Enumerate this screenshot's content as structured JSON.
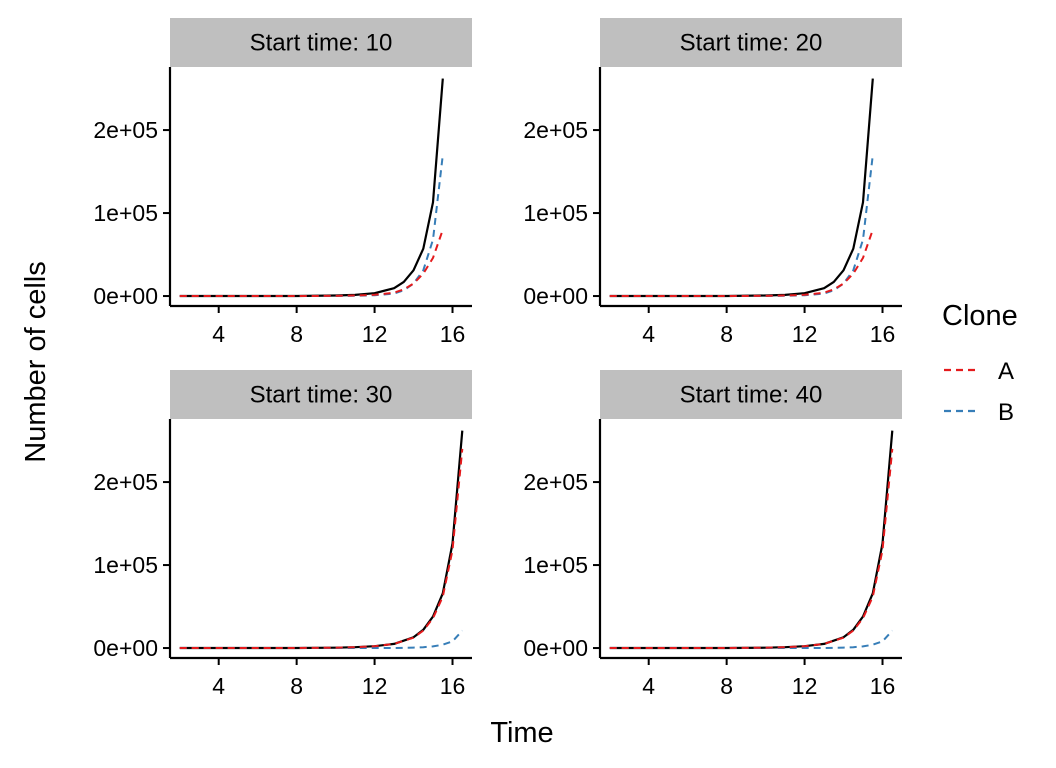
{
  "chart_data": {
    "type": "line",
    "layout": "facet-grid-2x2",
    "xlabel": "Time",
    "ylabel": "Number of cells",
    "xlim": [
      1.5,
      17
    ],
    "ylim": [
      -12000,
      276000
    ],
    "x_ticks": [
      4,
      8,
      12,
      16
    ],
    "y_ticks": [
      0,
      100000,
      200000
    ],
    "y_tick_labels": [
      "0e+00",
      "1e+05",
      "2e+05"
    ],
    "grid": false,
    "legend": {
      "title": "Clone",
      "position": "right",
      "entries": [
        {
          "name": "A",
          "color": "#E41A1C",
          "style": "dashed"
        },
        {
          "name": "B",
          "color": "#377EB8",
          "style": "dashed"
        }
      ]
    },
    "total_line_color": "#000000",
    "panels": [
      {
        "strip": "Start time: 10",
        "x": [
          2,
          4,
          6,
          8,
          10,
          11,
          12,
          13,
          13.5,
          14,
          14.5,
          15,
          15.5
        ],
        "series": [
          {
            "name": "Total",
            "values": [
              0,
              0,
              0,
              0,
              600,
              1400,
              3400,
              9500,
              17000,
              31000,
              57000,
              113000,
              262000
            ]
          },
          {
            "name": "A",
            "values": [
              0,
              0,
              0,
              0,
              200,
              600,
              1500,
              4000,
              8000,
              15000,
              27000,
              46000,
              80000
            ]
          },
          {
            "name": "B",
            "values": [
              0,
              0,
              0,
              0,
              100,
              300,
              1000,
              3000,
              7000,
              15000,
              31000,
              68000,
              170000
            ]
          }
        ]
      },
      {
        "strip": "Start time: 20",
        "x": [
          2,
          4,
          6,
          8,
          10,
          11,
          12,
          13,
          13.5,
          14,
          14.5,
          15,
          15.5
        ],
        "series": [
          {
            "name": "Total",
            "values": [
              0,
              0,
              0,
              0,
              600,
              1400,
              3400,
              9500,
              17000,
              31000,
              57000,
              113000,
              262000
            ]
          },
          {
            "name": "A",
            "values": [
              0,
              0,
              0,
              0,
              200,
              600,
              1500,
              4000,
              8000,
              15000,
              27000,
              46000,
              80000
            ]
          },
          {
            "name": "B",
            "values": [
              0,
              0,
              0,
              0,
              100,
              300,
              1000,
              3000,
              7000,
              15000,
              31000,
              68000,
              170000
            ]
          }
        ]
      },
      {
        "strip": "Start time: 30",
        "x": [
          2,
          4,
          6,
          8,
          10,
          11,
          12,
          13,
          14,
          14.5,
          15,
          15.5,
          16,
          16.5
        ],
        "series": [
          {
            "name": "Total",
            "values": [
              0,
              0,
              0,
              0,
              400,
              1000,
              2200,
              5000,
              13000,
              22000,
              38000,
              66000,
              126000,
              262000
            ]
          },
          {
            "name": "A",
            "values": [
              0,
              0,
              0,
              0,
              400,
              1000,
              2200,
              5000,
              12500,
              21000,
              36000,
              62000,
              118000,
              240000
            ]
          },
          {
            "name": "B",
            "values": [
              0,
              0,
              0,
              0,
              0,
              0,
              0,
              0,
              500,
              1000,
              2000,
              4000,
              8000,
              21000
            ]
          }
        ]
      },
      {
        "strip": "Start time: 40",
        "x": [
          2,
          4,
          6,
          8,
          10,
          11,
          12,
          13,
          14,
          14.5,
          15,
          15.5,
          16,
          16.5
        ],
        "series": [
          {
            "name": "Total",
            "values": [
              0,
              0,
              0,
              0,
              400,
              1000,
              2200,
              5000,
              13000,
              22000,
              38000,
              66000,
              126000,
              262000
            ]
          },
          {
            "name": "A",
            "values": [
              0,
              0,
              0,
              0,
              400,
              1000,
              2200,
              5000,
              12500,
              21000,
              36000,
              62000,
              118000,
              240000
            ]
          },
          {
            "name": "B",
            "values": [
              0,
              0,
              0,
              0,
              0,
              0,
              0,
              0,
              500,
              1000,
              2000,
              4000,
              8000,
              21000
            ]
          }
        ]
      }
    ]
  }
}
